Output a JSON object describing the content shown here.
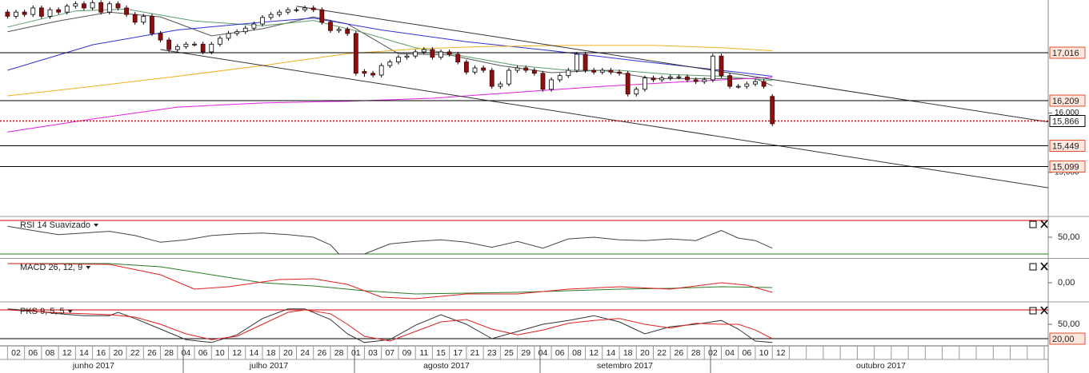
{
  "chart_data": [
    {
      "type": "candlestick",
      "categories": [
        null,
        "02",
        null,
        "06",
        null,
        "08",
        null,
        "12",
        null,
        "14",
        null,
        "16",
        null,
        "20",
        null,
        "22",
        null,
        "26",
        null,
        "28",
        null,
        "04",
        null,
        "06",
        null,
        "10",
        null,
        "12",
        null,
        "14",
        null,
        "18",
        null,
        "20",
        null,
        "24",
        null,
        "26",
        null,
        "28",
        null,
        "01",
        null,
        "03",
        null,
        "07",
        null,
        "09",
        null,
        "11",
        null,
        "15",
        null,
        "17",
        null,
        "21",
        null,
        "23",
        null,
        "25",
        null,
        "29",
        null,
        "04",
        null,
        "06",
        null,
        "08",
        null,
        "12",
        null,
        "14",
        null,
        "18",
        null,
        "20",
        null,
        "22",
        null,
        "26",
        null,
        "28",
        null,
        "02",
        null,
        "04",
        null,
        "06",
        null,
        "10",
        null,
        "12"
      ],
      "months": [
        "junho 2017",
        "julho 2017",
        "agosto 2017",
        "setembro 2017",
        "outubro 2017"
      ],
      "ohlc": [
        [
          17.7,
          17.74,
          17.59,
          17.63
        ],
        [
          17.63,
          17.74,
          17.59,
          17.7
        ],
        [
          17.7,
          17.74,
          17.62,
          17.66
        ],
        [
          17.66,
          17.81,
          17.62,
          17.77
        ],
        [
          17.77,
          17.81,
          17.59,
          17.63
        ],
        [
          17.63,
          17.78,
          17.59,
          17.74
        ],
        [
          17.74,
          17.78,
          17.66,
          17.7
        ],
        [
          17.7,
          17.84,
          17.66,
          17.8
        ],
        [
          17.8,
          17.88,
          17.76,
          17.84
        ],
        [
          17.84,
          17.88,
          17.73,
          17.77
        ],
        [
          17.77,
          17.9,
          17.73,
          17.86
        ],
        [
          17.86,
          17.9,
          17.66,
          17.7
        ],
        [
          17.7,
          17.88,
          17.66,
          17.84
        ],
        [
          17.84,
          17.88,
          17.73,
          17.77
        ],
        [
          17.77,
          17.81,
          17.62,
          17.66
        ],
        [
          17.66,
          17.7,
          17.49,
          17.53
        ],
        [
          17.53,
          17.67,
          17.49,
          17.63
        ],
        [
          17.63,
          17.67,
          17.3,
          17.34
        ],
        [
          17.34,
          17.38,
          17.19,
          17.23
        ],
        [
          17.23,
          17.27,
          17.03,
          17.07
        ],
        [
          17.07,
          17.16,
          17.03,
          17.12
        ],
        [
          17.12,
          17.2,
          17.08,
          17.16
        ],
        [
          17.16,
          17.2,
          17.12,
          17.16
        ],
        [
          17.16,
          17.2,
          16.99,
          17.03
        ],
        [
          17.03,
          17.2,
          16.99,
          17.16
        ],
        [
          17.16,
          17.3,
          17.12,
          17.26
        ],
        [
          17.26,
          17.38,
          17.22,
          17.34
        ],
        [
          17.34,
          17.41,
          17.3,
          17.37
        ],
        [
          17.37,
          17.47,
          17.33,
          17.43
        ],
        [
          17.43,
          17.54,
          17.39,
          17.5
        ],
        [
          17.5,
          17.65,
          17.46,
          17.61
        ],
        [
          17.61,
          17.7,
          17.57,
          17.66
        ],
        [
          17.66,
          17.74,
          17.62,
          17.7
        ],
        [
          17.7,
          17.78,
          17.66,
          17.74
        ],
        [
          17.74,
          17.78,
          17.7,
          17.74
        ],
        [
          17.74,
          17.81,
          17.7,
          17.77
        ],
        [
          17.77,
          17.81,
          17.7,
          17.74
        ],
        [
          17.74,
          17.78,
          17.49,
          17.53
        ],
        [
          17.53,
          17.57,
          17.35,
          17.39
        ],
        [
          17.39,
          17.45,
          17.35,
          17.41
        ],
        [
          17.41,
          17.45,
          17.3,
          17.34
        ],
        [
          17.34,
          17.38,
          16.63,
          16.67
        ],
        [
          16.7,
          16.74,
          16.61,
          16.67
        ],
        [
          16.67,
          16.71,
          16.6,
          16.64
        ],
        [
          16.64,
          16.84,
          16.6,
          16.8
        ],
        [
          16.8,
          16.9,
          16.76,
          16.86
        ],
        [
          16.86,
          16.98,
          16.82,
          16.94
        ],
        [
          16.94,
          17.0,
          16.9,
          16.96
        ],
        [
          16.96,
          17.07,
          16.92,
          17.03
        ],
        [
          17.03,
          17.11,
          16.99,
          17.07
        ],
        [
          17.07,
          17.11,
          16.9,
          16.94
        ],
        [
          16.94,
          17.07,
          16.9,
          17.03
        ],
        [
          17.03,
          17.07,
          16.95,
          16.99
        ],
        [
          16.99,
          17.03,
          16.82,
          16.86
        ],
        [
          16.86,
          16.9,
          16.65,
          16.69
        ],
        [
          16.69,
          16.8,
          16.65,
          16.76
        ],
        [
          16.76,
          16.8,
          16.68,
          16.72
        ],
        [
          16.72,
          16.76,
          16.41,
          16.45
        ],
        [
          16.45,
          16.53,
          16.41,
          16.49
        ],
        [
          16.49,
          16.76,
          16.45,
          16.72
        ],
        [
          16.72,
          16.8,
          16.68,
          16.76
        ],
        [
          16.76,
          16.8,
          16.68,
          16.72
        ],
        [
          16.72,
          16.76,
          16.63,
          16.67
        ],
        [
          16.67,
          16.71,
          16.36,
          16.4
        ],
        [
          16.4,
          16.6,
          16.36,
          16.56
        ],
        [
          16.56,
          16.67,
          16.52,
          16.63
        ],
        [
          16.63,
          16.76,
          16.59,
          16.72
        ],
        [
          16.72,
          17.03,
          16.68,
          16.99
        ],
        [
          16.99,
          17.03,
          16.68,
          16.72
        ],
        [
          16.72,
          16.76,
          16.65,
          16.69
        ],
        [
          16.69,
          16.76,
          16.65,
          16.72
        ],
        [
          16.72,
          16.76,
          16.65,
          16.69
        ],
        [
          16.69,
          16.73,
          16.63,
          16.67
        ],
        [
          16.67,
          16.71,
          16.28,
          16.32
        ],
        [
          16.32,
          16.44,
          16.28,
          16.4
        ],
        [
          16.4,
          16.63,
          16.36,
          16.59
        ],
        [
          16.59,
          16.63,
          16.52,
          16.56
        ],
        [
          16.56,
          16.63,
          16.52,
          16.59
        ],
        [
          16.59,
          16.65,
          16.55,
          16.61
        ],
        [
          16.61,
          16.65,
          16.57,
          16.61
        ],
        [
          16.61,
          16.65,
          16.52,
          16.56
        ],
        [
          16.56,
          16.6,
          16.49,
          16.53
        ],
        [
          16.53,
          16.6,
          16.49,
          16.56
        ],
        [
          16.56,
          17.0,
          16.52,
          16.96
        ],
        [
          16.96,
          17.0,
          16.59,
          16.63
        ],
        [
          16.63,
          16.67,
          16.41,
          16.45
        ],
        [
          16.45,
          16.49,
          16.41,
          16.45
        ],
        [
          16.45,
          16.53,
          16.41,
          16.49
        ],
        [
          16.49,
          16.57,
          16.45,
          16.53
        ],
        [
          16.53,
          16.57,
          16.41,
          16.45
        ],
        [
          16.28,
          16.32,
          15.78,
          15.82
        ],
        null
      ],
      "up_color": "#ffffff",
      "down_color": "#8b1010",
      "ylim": [
        14.272,
        17.904
      ],
      "yticks": [
        {
          "value": 16,
          "label": "16,000"
        },
        {
          "value": 15,
          "label": "15,000"
        }
      ],
      "levels": [
        {
          "value": 17.016,
          "label": "17,016"
        },
        {
          "value": 16.209,
          "label": "16,209"
        },
        {
          "value": 15.449,
          "label": "15,449"
        },
        {
          "value": 15.099,
          "label": "15,099"
        }
      ],
      "last": {
        "value": 15.866,
        "label": "15,866"
      },
      "series": [
        {
          "color": "#555555",
          "x": [
            0,
            6,
            12,
            18,
            24,
            30,
            36,
            40,
            46,
            52,
            58,
            64,
            70,
            76,
            82,
            88,
            90
          ],
          "values": [
            17.37,
            17.55,
            17.7,
            17.62,
            17.3,
            17.42,
            17.62,
            17.5,
            17.0,
            16.98,
            16.8,
            16.68,
            16.72,
            16.58,
            16.58,
            16.58,
            16.46
          ]
        },
        {
          "color": "#5a9a6a",
          "x": [
            0,
            8,
            14,
            22,
            30,
            36,
            42,
            48,
            54,
            60,
            66,
            72,
            78,
            84,
            90
          ],
          "values": [
            17.45,
            17.72,
            17.75,
            17.55,
            17.47,
            17.56,
            17.35,
            17.1,
            16.95,
            16.8,
            16.72,
            16.72,
            16.65,
            16.62,
            16.55
          ]
        },
        {
          "color": "#3030d0",
          "x": [
            0,
            10,
            20,
            30,
            36,
            44,
            54,
            64,
            74,
            84,
            90
          ],
          "values": [
            16.72,
            17.15,
            17.4,
            17.53,
            17.6,
            17.4,
            17.2,
            17.05,
            16.88,
            16.72,
            16.62
          ]
        },
        {
          "color": "#f0b020",
          "x": [
            0,
            10,
            20,
            30,
            40,
            48,
            56,
            66,
            76,
            84,
            90
          ],
          "values": [
            16.29,
            16.45,
            16.62,
            16.8,
            17.0,
            17.08,
            17.12,
            17.14,
            17.14,
            17.1,
            17.05
          ]
        },
        {
          "color": "#e020e0",
          "x": [
            0,
            10,
            20,
            30,
            40,
            50,
            60,
            70,
            80,
            90
          ],
          "values": [
            15.68,
            15.9,
            16.1,
            16.17,
            16.2,
            16.25,
            16.35,
            16.45,
            16.53,
            16.6
          ]
        },
        {
          "color": "#333333",
          "x": [
            34,
            127
          ],
          "values": [
            17.8,
            15.75
          ]
        },
        {
          "color": "#333333",
          "x": [
            18,
            127
          ],
          "values": [
            17.07,
            14.64
          ]
        }
      ]
    },
    {
      "type": "line",
      "title": "RSI 14 Suavizado",
      "ylim": [
        26.2,
        73.8
      ],
      "yticks": [
        {
          "value": 50,
          "label": "50,00"
        }
      ],
      "levels": [
        70,
        30
      ],
      "level_colors": [
        "#d00000",
        "#208020"
      ],
      "series": [
        {
          "color": "#444444",
          "x": [
            0,
            3,
            6,
            9,
            12,
            15,
            18,
            21,
            24,
            27,
            30,
            33,
            36,
            38,
            39,
            42,
            45,
            48,
            51,
            54,
            57,
            60,
            63,
            66,
            69,
            72,
            75,
            78,
            81,
            84,
            86,
            88,
            90
          ],
          "values": [
            63,
            58,
            53,
            55,
            57,
            52,
            44,
            47,
            52,
            54,
            55,
            53,
            50,
            41,
            30,
            30,
            42,
            45,
            47,
            44,
            38,
            45,
            37,
            48,
            50,
            47,
            46,
            48,
            46,
            58,
            49,
            46,
            37
          ]
        }
      ]
    },
    {
      "type": "line",
      "title": "MACD 26, 12, 9",
      "title_color": "#2a6a2a",
      "ylim": [
        -0.21,
        0.29
      ],
      "yticks": [
        {
          "value": 0,
          "label": "0,00"
        }
      ],
      "series": [
        {
          "color": "#2a7a2a",
          "x": [
            0,
            12,
            18,
            24,
            30,
            36,
            42,
            48,
            54,
            60,
            66,
            72,
            78,
            84,
            90
          ],
          "values": [
            0.24,
            0.24,
            0.2,
            0.1,
            0.0,
            -0.04,
            -0.1,
            -0.14,
            -0.13,
            -0.12,
            -0.1,
            -0.08,
            -0.07,
            -0.05,
            -0.06
          ]
        },
        {
          "color": "#e02020",
          "x": [
            0,
            12,
            18,
            22,
            26,
            32,
            36,
            40,
            44,
            48,
            54,
            60,
            66,
            72,
            78,
            84,
            87,
            90
          ],
          "values": [
            0.24,
            0.23,
            0.1,
            -0.08,
            -0.05,
            0.04,
            0.05,
            -0.02,
            -0.18,
            -0.2,
            -0.14,
            -0.14,
            -0.08,
            -0.05,
            -0.08,
            0.0,
            -0.03,
            -0.12
          ]
        }
      ]
    },
    {
      "type": "line",
      "title": "PKS 9, 5, 5",
      "ylim": [
        6.7,
        93.3
      ],
      "yticks": [
        {
          "value": 50,
          "label": "50,00"
        }
      ],
      "levels": [
        80,
        {
          "value": 20,
          "label": "20,00"
        }
      ],
      "level_colors": [
        "#d00000",
        "#000000"
      ],
      "series": [
        {
          "color": "#333333",
          "x": [
            0,
            3,
            6,
            9,
            12,
            13,
            15,
            18,
            21,
            24,
            27,
            30,
            33,
            35,
            38,
            40,
            42,
            45,
            48,
            51,
            54,
            57,
            60,
            63,
            66,
            69,
            72,
            75,
            78,
            81,
            84,
            86,
            88,
            90
          ],
          "values": [
            82,
            78,
            72,
            68,
            68,
            75,
            62,
            40,
            18,
            12,
            28,
            62,
            82,
            82,
            60,
            30,
            12,
            18,
            48,
            70,
            50,
            20,
            35,
            50,
            58,
            68,
            55,
            30,
            45,
            50,
            58,
            40,
            15,
            12
          ]
        },
        {
          "color": "#e02020",
          "x": [
            0,
            6,
            12,
            15,
            18,
            21,
            24,
            27,
            30,
            33,
            35,
            38,
            40,
            42,
            45,
            48,
            51,
            54,
            57,
            60,
            63,
            66,
            69,
            72,
            75,
            78,
            81,
            84,
            86,
            88,
            90
          ],
          "values": [
            80,
            74,
            70,
            65,
            50,
            30,
            18,
            25,
            50,
            75,
            80,
            72,
            50,
            25,
            15,
            35,
            55,
            60,
            40,
            28,
            38,
            52,
            58,
            62,
            50,
            42,
            52,
            50,
            50,
            38,
            20
          ]
        }
      ]
    }
  ]
}
